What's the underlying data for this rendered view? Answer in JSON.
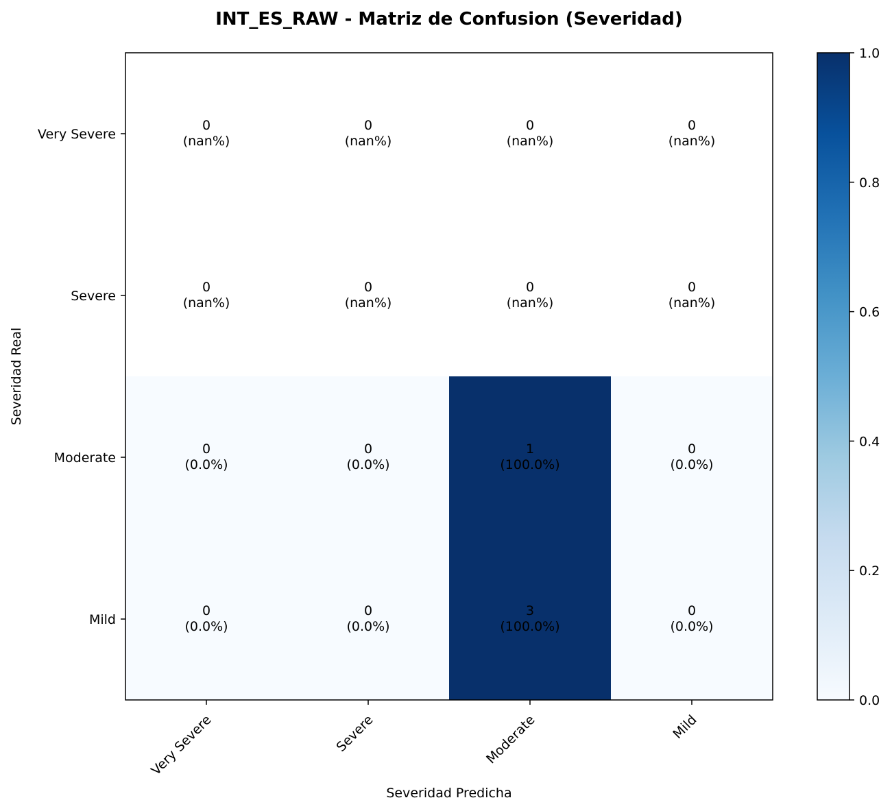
{
  "chart_data": {
    "type": "heatmap",
    "title": "INT_ES_RAW - Matriz de Confusion (Severidad)",
    "xlabel": "Severidad Predicha",
    "ylabel": "Severidad Real",
    "x_categories": [
      "Very Severe",
      "Severe",
      "Moderate",
      "Mild"
    ],
    "y_categories": [
      "Very Severe",
      "Severe",
      "Moderate",
      "Mild"
    ],
    "counts": [
      [
        0,
        0,
        0,
        0
      ],
      [
        0,
        0,
        0,
        0
      ],
      [
        0,
        0,
        1,
        0
      ],
      [
        0,
        0,
        3,
        0
      ]
    ],
    "normalized": [
      [
        null,
        null,
        null,
        null
      ],
      [
        null,
        null,
        null,
        null
      ],
      [
        0.0,
        0.0,
        1.0,
        0.0
      ],
      [
        0.0,
        0.0,
        1.0,
        0.0
      ]
    ],
    "percent_labels": [
      [
        "(nan%)",
        "(nan%)",
        "(nan%)",
        "(nan%)"
      ],
      [
        "(nan%)",
        "(nan%)",
        "(nan%)",
        "(nan%)"
      ],
      [
        "(0.0%)",
        "(0.0%)",
        "(100.0%)",
        "(0.0%)"
      ],
      [
        "(0.0%)",
        "(0.0%)",
        "(100.0%)",
        "(0.0%)"
      ]
    ],
    "colorbar": {
      "colormap": "Blues",
      "range": [
        0.0,
        1.0
      ],
      "ticks": [
        "0.0",
        "0.2",
        "0.4",
        "0.6",
        "0.8",
        "1.0"
      ]
    },
    "colors": {
      "low": "#f7fbff",
      "high": "#08306b",
      "nan": "#ffffff",
      "text": "#000000"
    },
    "grid": false
  }
}
